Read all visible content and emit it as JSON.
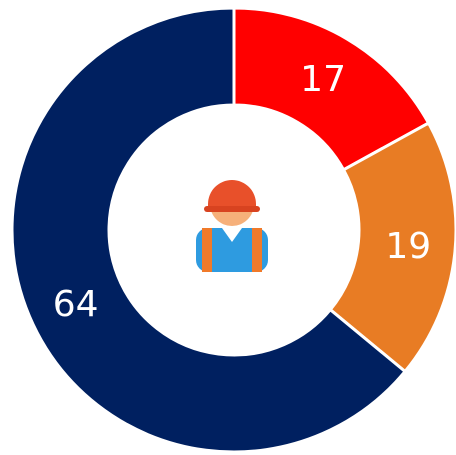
{
  "chart_data": {
    "type": "donut",
    "categories": [
      null,
      null,
      null
    ],
    "values": [
      17,
      19,
      64
    ],
    "colors": [
      "#ff0000",
      "#e87c24",
      "#002060"
    ]
  }
}
